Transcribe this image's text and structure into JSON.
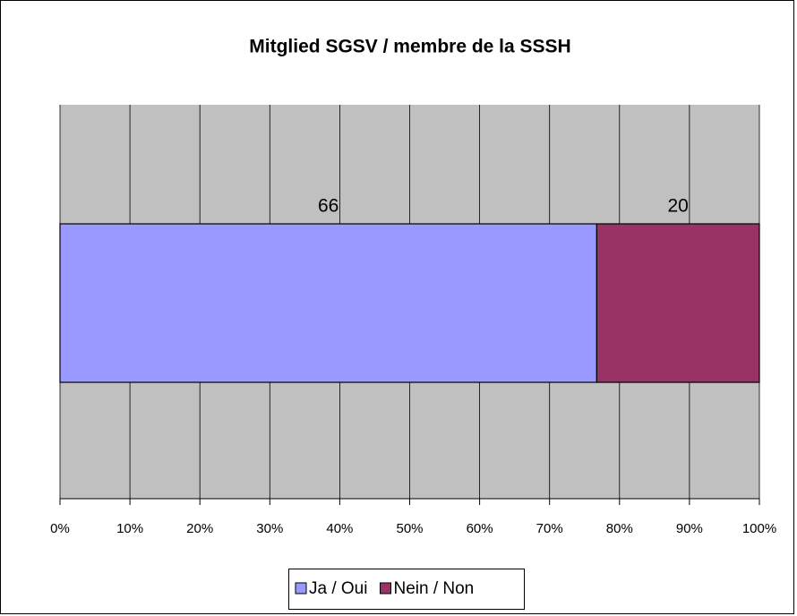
{
  "chart_data": {
    "type": "bar",
    "orientation": "horizontal",
    "stacking": "percent",
    "title": "Mitglied SGSV / membre de la SSSH",
    "categories": [
      null
    ],
    "series": [
      {
        "name": "Ja / Oui",
        "color": "#9999ff",
        "values": [
          66
        ]
      },
      {
        "name": "Nein / Non",
        "color": "#993366",
        "values": [
          20
        ]
      }
    ],
    "xlim": [
      0,
      100
    ],
    "xticks": [
      {
        "value": 0,
        "label": "0%"
      },
      {
        "value": 10,
        "label": "10%"
      },
      {
        "value": 20,
        "label": "20%"
      },
      {
        "value": 30,
        "label": "30%"
      },
      {
        "value": 40,
        "label": "40%"
      },
      {
        "value": 50,
        "label": "50%"
      },
      {
        "value": 60,
        "label": "60%"
      },
      {
        "value": 70,
        "label": "70%"
      },
      {
        "value": 80,
        "label": "80%"
      },
      {
        "value": 90,
        "label": "90%"
      },
      {
        "value": 100,
        "label": "100%"
      }
    ],
    "grid": true,
    "legend": "bottom"
  }
}
